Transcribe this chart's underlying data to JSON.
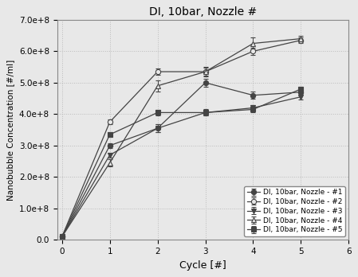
{
  "title": "DI, 10bar, Nozzle #",
  "xlabel": "Cycle [#]",
  "ylabel": "Nanobubble Concentration [#/ml]",
  "xlim": [
    -0.1,
    6
  ],
  "ylim": [
    0,
    700000000.0
  ],
  "xticks": [
    0,
    1,
    2,
    3,
    4,
    5,
    6
  ],
  "ytick_vals": [
    0.0,
    100000000.0,
    200000000.0,
    300000000.0,
    400000000.0,
    500000000.0,
    600000000.0,
    700000000.0
  ],
  "ytick_labels": [
    "0.0",
    "1.0e+8",
    "2.0e+8",
    "3.0e+8",
    "4.0e+8",
    "5.0e+8",
    "6.0e+8",
    "7.0e+8"
  ],
  "series": [
    {
      "label": "DI, 10bar, Nozzle - #1",
      "x": [
        0,
        1,
        2,
        3,
        4,
        5
      ],
      "y": [
        10000000.0,
        300000000.0,
        355000000.0,
        500000000.0,
        460000000.0,
        470000000.0
      ],
      "yerr": [
        3000000.0,
        8000000.0,
        12000000.0,
        12000000.0,
        12000000.0,
        8000000.0
      ],
      "marker": "o",
      "fillstyle": "full",
      "color": "#444444",
      "linestyle": "-"
    },
    {
      "label": "DI, 10bar, Nozzle - #2",
      "x": [
        0,
        1,
        2,
        3,
        4,
        5
      ],
      "y": [
        10000000.0,
        375000000.0,
        535000000.0,
        535000000.0,
        600000000.0,
        635000000.0
      ],
      "yerr": [
        3000000.0,
        8000000.0,
        10000000.0,
        12000000.0,
        12000000.0,
        8000000.0
      ],
      "marker": "o",
      "fillstyle": "none",
      "color": "#444444",
      "linestyle": "-"
    },
    {
      "label": "DI, 10bar, Nozzle - #3",
      "x": [
        0,
        1,
        2,
        3,
        4,
        5
      ],
      "y": [
        10000000.0,
        270000000.0,
        355000000.0,
        405000000.0,
        420000000.0,
        455000000.0
      ],
      "yerr": [
        3000000.0,
        8000000.0,
        12000000.0,
        10000000.0,
        8000000.0,
        8000000.0
      ],
      "marker": "v",
      "fillstyle": "full",
      "color": "#444444",
      "linestyle": "-"
    },
    {
      "label": "DI, 10bar, Nozzle - #4",
      "x": [
        0,
        1,
        2,
        3,
        4,
        5
      ],
      "y": [
        10000000.0,
        245000000.0,
        490000000.0,
        535000000.0,
        625000000.0,
        640000000.0
      ],
      "yerr": [
        3000000.0,
        12000000.0,
        18000000.0,
        15000000.0,
        18000000.0,
        8000000.0
      ],
      "marker": "^",
      "fillstyle": "none",
      "color": "#444444",
      "linestyle": "-"
    },
    {
      "label": "DI, 10bar, Nozzle - #5",
      "x": [
        0,
        1,
        2,
        3,
        4,
        5
      ],
      "y": [
        10000000.0,
        335000000.0,
        405000000.0,
        405000000.0,
        415000000.0,
        480000000.0
      ],
      "yerr": [
        3000000.0,
        8000000.0,
        8000000.0,
        8000000.0,
        8000000.0,
        8000000.0
      ],
      "marker": "s",
      "fillstyle": "full",
      "color": "#444444",
      "linestyle": "-"
    }
  ],
  "fig_bg": "#e8e8e8",
  "axes_bg": "#e8e8e8",
  "grid_color": "#bbbbbb"
}
